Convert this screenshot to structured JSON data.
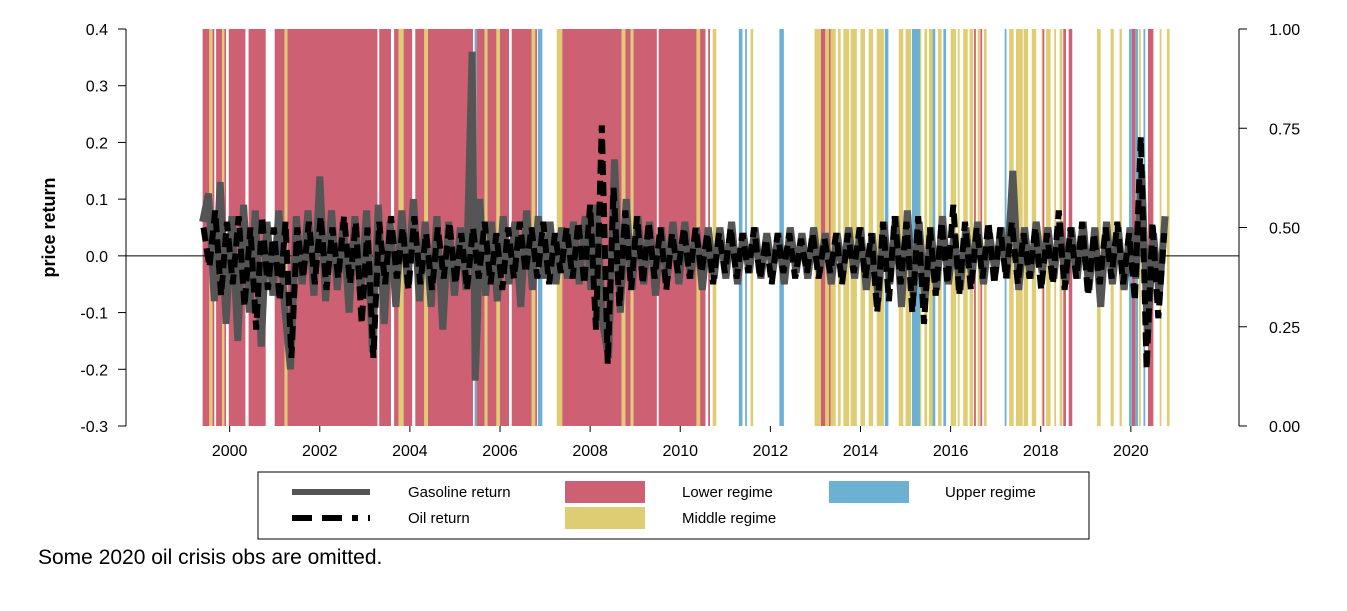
{
  "chart_data": {
    "type": "line",
    "title": "",
    "xlabel": "",
    "ylabel": "price return",
    "ylim": [
      -0.3,
      0.4
    ],
    "y2lim": [
      0.0,
      1.0
    ],
    "xlim": [
      1997.7,
      2022.4
    ],
    "x_ticks": [
      2000,
      2002,
      2004,
      2006,
      2008,
      2010,
      2012,
      2014,
      2016,
      2018,
      2020
    ],
    "y_ticks": [
      "0.4",
      "0.3",
      "0.2",
      "0.1",
      "0.0",
      "-0.1",
      "-0.2",
      "-0.3"
    ],
    "y2_ticks": [
      "1.00",
      "0.75",
      "0.50",
      "0.25",
      "0.00"
    ],
    "grid": false,
    "zero_line": 0.0,
    "legend_position": "bottom",
    "regimes": {
      "lower": [
        [
          1999.4,
          1999.55
        ],
        [
          1999.62,
          1999.66
        ],
        [
          1999.7,
          1999.83
        ],
        [
          1999.88,
          1999.92
        ],
        [
          1999.98,
          2000.35
        ],
        [
          2000.42,
          2000.8
        ],
        [
          2001.0,
          2001.22
        ],
        [
          2001.28,
          2003.28
        ],
        [
          2003.32,
          2003.58
        ],
        [
          2003.65,
          2003.75
        ],
        [
          2003.86,
          2004.05
        ],
        [
          2004.12,
          2004.32
        ],
        [
          2004.4,
          2005.4
        ],
        [
          2005.44,
          2005.45
        ],
        [
          2005.48,
          2005.66
        ],
        [
          2005.72,
          2005.92
        ],
        [
          2006.0,
          2006.2
        ],
        [
          2006.26,
          2006.7
        ],
        [
          2006.78,
          2006.82
        ],
        [
          2007.38,
          2008.7
        ],
        [
          2008.78,
          2008.9
        ],
        [
          2008.96,
          2009.48
        ],
        [
          2009.52,
          2010.36
        ],
        [
          2010.44,
          2010.56
        ],
        [
          2010.62,
          2010.66
        ],
        [
          2013.12,
          2013.22
        ],
        [
          2013.3,
          2013.34
        ],
        [
          2016.52,
          2016.56
        ],
        [
          2016.66,
          2016.7
        ],
        [
          2018.04,
          2018.08
        ],
        [
          2018.5,
          2018.56
        ],
        [
          2018.62,
          2018.7
        ],
        [
          2020.02,
          2020.1
        ],
        [
          2020.38,
          2020.5
        ]
      ],
      "middle": [
        [
          1999.55,
          1999.62
        ],
        [
          1999.83,
          1999.88
        ],
        [
          2001.22,
          2001.28
        ],
        [
          2003.75,
          2003.86
        ],
        [
          2004.32,
          2004.4
        ],
        [
          2005.66,
          2005.72
        ],
        [
          2005.92,
          2006.0
        ],
        [
          2006.7,
          2006.78
        ],
        [
          2007.26,
          2007.38
        ],
        [
          2008.7,
          2008.78
        ],
        [
          2008.9,
          2008.96
        ],
        [
          2010.36,
          2010.44
        ],
        [
          2010.72,
          2010.8
        ],
        [
          2011.56,
          2011.62
        ],
        [
          2012.98,
          2013.12
        ],
        [
          2013.22,
          2013.3
        ],
        [
          2013.34,
          2013.45
        ],
        [
          2013.5,
          2013.56
        ],
        [
          2013.62,
          2013.75
        ],
        [
          2013.78,
          2013.92
        ],
        [
          2014.0,
          2014.1
        ],
        [
          2014.18,
          2014.28
        ],
        [
          2014.36,
          2014.52
        ],
        [
          2014.85,
          2014.95
        ],
        [
          2015.0,
          2015.12
        ],
        [
          2015.25,
          2015.35
        ],
        [
          2015.42,
          2015.48
        ],
        [
          2015.52,
          2015.6
        ],
        [
          2015.72,
          2015.8
        ],
        [
          2016.0,
          2016.12
        ],
        [
          2016.16,
          2016.2
        ],
        [
          2016.28,
          2016.38
        ],
        [
          2016.42,
          2016.5
        ],
        [
          2016.6,
          2016.65
        ],
        [
          2016.74,
          2016.8
        ],
        [
          2017.3,
          2017.4
        ],
        [
          2017.45,
          2017.6
        ],
        [
          2017.62,
          2017.72
        ],
        [
          2017.8,
          2017.9
        ],
        [
          2018.02,
          2018.04
        ],
        [
          2018.12,
          2018.22
        ],
        [
          2018.3,
          2018.34
        ],
        [
          2018.42,
          2018.48
        ],
        [
          2019.25,
          2019.33
        ],
        [
          2019.55,
          2019.62
        ],
        [
          2019.75,
          2019.8
        ],
        [
          2020.18,
          2020.22
        ],
        [
          2020.64,
          2020.68
        ],
        [
          2020.8,
          2020.86
        ]
      ],
      "upper": [
        [
          2005.44,
          2005.48
        ],
        [
          2006.84,
          2006.94
        ],
        [
          2011.3,
          2011.38
        ],
        [
          2011.44,
          2011.48
        ],
        [
          2012.2,
          2012.3
        ],
        [
          2014.54,
          2014.62
        ],
        [
          2015.14,
          2015.32
        ],
        [
          2015.6,
          2015.66
        ],
        [
          2015.84,
          2015.9
        ],
        [
          2017.2,
          2017.24
        ],
        [
          2019.96,
          2020.02
        ],
        [
          2020.1,
          2020.16
        ],
        [
          2020.28,
          2020.32
        ]
      ]
    },
    "series": [
      {
        "name": "Gasoline return",
        "x": [
          1999.4,
          1999.53,
          1999.66,
          1999.79,
          1999.92,
          2000.05,
          2000.18,
          2000.31,
          2000.44,
          2000.57,
          2000.7,
          2000.83,
          2000.96,
          2001.09,
          2001.22,
          2001.35,
          2001.48,
          2001.61,
          2001.74,
          2001.87,
          2002.0,
          2002.13,
          2002.26,
          2002.39,
          2002.52,
          2002.65,
          2002.78,
          2002.91,
          2003.04,
          2003.17,
          2003.3,
          2003.43,
          2003.56,
          2003.69,
          2003.82,
          2003.95,
          2004.08,
          2004.21,
          2004.34,
          2004.47,
          2004.6,
          2004.73,
          2004.86,
          2004.99,
          2005.12,
          2005.25,
          2005.38,
          2005.45,
          2005.5,
          2005.55,
          2005.68,
          2005.81,
          2005.94,
          2006.07,
          2006.2,
          2006.33,
          2006.46,
          2006.59,
          2006.72,
          2006.85,
          2006.98,
          2007.11,
          2007.24,
          2007.37,
          2007.5,
          2007.63,
          2007.76,
          2007.89,
          2008.02,
          2008.15,
          2008.28,
          2008.41,
          2008.54,
          2008.67,
          2008.8,
          2008.93,
          2009.06,
          2009.19,
          2009.32,
          2009.45,
          2009.58,
          2009.71,
          2009.84,
          2009.97,
          2010.1,
          2010.23,
          2010.36,
          2010.49,
          2010.62,
          2010.75,
          2010.88,
          2011.01,
          2011.14,
          2011.27,
          2011.4,
          2011.53,
          2011.66,
          2011.79,
          2011.92,
          2012.05,
          2012.18,
          2012.31,
          2012.44,
          2012.57,
          2012.7,
          2012.83,
          2012.96,
          2013.09,
          2013.22,
          2013.35,
          2013.48,
          2013.61,
          2013.74,
          2013.87,
          2014.0,
          2014.13,
          2014.26,
          2014.39,
          2014.52,
          2014.65,
          2014.78,
          2014.91,
          2015.04,
          2015.17,
          2015.3,
          2015.43,
          2015.56,
          2015.69,
          2015.82,
          2015.95,
          2016.08,
          2016.21,
          2016.34,
          2016.47,
          2016.6,
          2016.73,
          2016.86,
          2016.99,
          2017.12,
          2017.25,
          2017.38,
          2017.51,
          2017.64,
          2017.77,
          2017.9,
          2018.03,
          2018.16,
          2018.29,
          2018.42,
          2018.55,
          2018.68,
          2018.81,
          2018.94,
          2019.07,
          2019.2,
          2019.33,
          2019.46,
          2019.59,
          2019.72,
          2019.85,
          2019.98,
          2020.11,
          2020.24,
          2020.37,
          2020.5,
          2020.63,
          2020.76
        ],
        "values": [
          0.06,
          0.11,
          -0.08,
          0.13,
          -0.12,
          0.07,
          -0.15,
          0.09,
          -0.1,
          0.08,
          -0.16,
          0.06,
          -0.07,
          0.08,
          -0.09,
          -0.2,
          0.07,
          -0.05,
          0.08,
          -0.07,
          0.14,
          -0.08,
          0.08,
          -0.06,
          0.06,
          -0.1,
          0.07,
          -0.07,
          0.08,
          -0.17,
          0.09,
          -0.12,
          0.06,
          -0.09,
          0.08,
          -0.05,
          0.1,
          -0.08,
          0.06,
          -0.09,
          0.07,
          -0.13,
          0.06,
          -0.07,
          0.05,
          -0.06,
          0.36,
          -0.22,
          -0.11,
          0.1,
          -0.07,
          0.06,
          -0.08,
          0.07,
          -0.05,
          0.06,
          -0.09,
          0.08,
          -0.06,
          0.07,
          -0.04,
          0.06,
          -0.05,
          0.05,
          -0.04,
          0.06,
          -0.05,
          0.07,
          -0.06,
          0.09,
          -0.12,
          -0.18,
          0.17,
          -0.1,
          0.1,
          -0.06,
          0.07,
          -0.05,
          0.06,
          -0.07,
          0.05,
          -0.04,
          0.06,
          -0.05,
          0.06,
          -0.04,
          0.05,
          -0.06,
          0.05,
          -0.04,
          0.05,
          -0.04,
          0.06,
          -0.05,
          0.04,
          -0.03,
          0.05,
          -0.04,
          0.04,
          -0.03,
          0.04,
          -0.05,
          0.05,
          -0.03,
          0.04,
          -0.04,
          0.05,
          -0.03,
          0.04,
          -0.05,
          0.04,
          -0.03,
          0.05,
          -0.04,
          0.05,
          -0.06,
          0.04,
          -0.08,
          0.06,
          -0.05,
          0.07,
          -0.09,
          0.08,
          -0.07,
          0.06,
          -0.08,
          0.05,
          -0.06,
          0.07,
          -0.05,
          0.04,
          -0.06,
          0.05,
          -0.04,
          0.06,
          -0.05,
          0.04,
          -0.03,
          0.05,
          -0.04,
          0.15,
          -0.06,
          0.05,
          -0.04,
          0.06,
          -0.03,
          0.05,
          -0.04,
          0.06,
          -0.05,
          0.05,
          -0.04,
          0.06,
          -0.06,
          0.05,
          -0.09,
          0.06,
          -0.05,
          0.05,
          -0.06,
          0.05,
          -0.04,
          0.15,
          -0.14,
          0.04,
          -0.07,
          0.07
        ]
      },
      {
        "name": "Oil return",
        "x": [
          1999.42,
          1999.55,
          1999.68,
          1999.81,
          1999.94,
          2000.07,
          2000.2,
          2000.33,
          2000.46,
          2000.59,
          2000.72,
          2000.85,
          2000.98,
          2001.11,
          2001.24,
          2001.37,
          2001.5,
          2001.63,
          2001.76,
          2001.89,
          2002.02,
          2002.15,
          2002.28,
          2002.41,
          2002.54,
          2002.67,
          2002.8,
          2002.93,
          2003.06,
          2003.19,
          2003.32,
          2003.45,
          2003.58,
          2003.71,
          2003.84,
          2003.97,
          2004.1,
          2004.23,
          2004.36,
          2004.49,
          2004.62,
          2004.75,
          2004.88,
          2005.01,
          2005.14,
          2005.27,
          2005.4,
          2005.53,
          2005.66,
          2005.79,
          2005.92,
          2006.05,
          2006.18,
          2006.31,
          2006.44,
          2006.57,
          2006.7,
          2006.83,
          2006.96,
          2007.09,
          2007.22,
          2007.35,
          2007.48,
          2007.61,
          2007.74,
          2007.87,
          2008.0,
          2008.13,
          2008.26,
          2008.39,
          2008.52,
          2008.65,
          2008.78,
          2008.91,
          2009.04,
          2009.17,
          2009.3,
          2009.43,
          2009.56,
          2009.69,
          2009.82,
          2009.95,
          2010.08,
          2010.21,
          2010.34,
          2010.47,
          2010.6,
          2010.73,
          2010.86,
          2010.99,
          2011.12,
          2011.25,
          2011.38,
          2011.51,
          2011.64,
          2011.77,
          2011.9,
          2012.03,
          2012.16,
          2012.29,
          2012.42,
          2012.55,
          2012.68,
          2012.81,
          2012.94,
          2013.07,
          2013.2,
          2013.33,
          2013.46,
          2013.59,
          2013.72,
          2013.85,
          2013.98,
          2014.11,
          2014.24,
          2014.37,
          2014.5,
          2014.63,
          2014.76,
          2014.89,
          2015.02,
          2015.15,
          2015.28,
          2015.41,
          2015.54,
          2015.67,
          2015.8,
          2015.93,
          2016.06,
          2016.19,
          2016.32,
          2016.45,
          2016.58,
          2016.71,
          2016.84,
          2016.97,
          2017.1,
          2017.23,
          2017.36,
          2017.49,
          2017.62,
          2017.75,
          2017.88,
          2018.01,
          2018.14,
          2018.27,
          2018.4,
          2018.53,
          2018.66,
          2018.79,
          2018.92,
          2019.05,
          2019.18,
          2019.31,
          2019.44,
          2019.57,
          2019.7,
          2019.83,
          2019.96,
          2020.09,
          2020.22,
          2020.35,
          2020.48,
          2020.61,
          2020.74
        ],
        "values": [
          0.05,
          -0.02,
          0.08,
          -0.07,
          0.06,
          -0.05,
          0.07,
          -0.09,
          0.05,
          -0.13,
          0.07,
          -0.06,
          0.05,
          -0.08,
          0.06,
          -0.18,
          0.05,
          -0.04,
          0.06,
          -0.05,
          0.07,
          -0.06,
          0.05,
          -0.04,
          0.07,
          -0.05,
          0.06,
          -0.12,
          0.05,
          -0.18,
          0.06,
          -0.05,
          0.07,
          -0.04,
          0.05,
          -0.06,
          0.07,
          -0.05,
          0.04,
          -0.06,
          0.05,
          -0.04,
          0.06,
          -0.05,
          0.04,
          -0.06,
          0.05,
          -0.04,
          0.06,
          -0.05,
          0.04,
          -0.06,
          0.05,
          -0.04,
          0.06,
          -0.03,
          0.05,
          -0.04,
          0.06,
          -0.05,
          0.04,
          -0.03,
          0.05,
          -0.04,
          0.06,
          -0.05,
          0.09,
          -0.13,
          0.23,
          -0.19,
          0.12,
          -0.09,
          0.08,
          -0.06,
          0.07,
          -0.05,
          0.06,
          -0.04,
          0.05,
          -0.06,
          0.04,
          -0.03,
          0.05,
          -0.04,
          0.05,
          -0.03,
          0.04,
          -0.05,
          0.04,
          -0.03,
          0.05,
          -0.04,
          0.04,
          -0.03,
          0.05,
          -0.04,
          0.03,
          -0.05,
          0.04,
          -0.03,
          0.04,
          -0.04,
          0.03,
          -0.03,
          0.04,
          -0.04,
          0.03,
          -0.03,
          0.04,
          -0.05,
          0.04,
          -0.03,
          0.05,
          -0.04,
          0.04,
          -0.1,
          0.06,
          -0.08,
          0.07,
          -0.05,
          0.06,
          -0.1,
          0.07,
          -0.12,
          0.05,
          -0.07,
          0.06,
          -0.05,
          0.09,
          -0.07,
          0.06,
          -0.06,
          0.05,
          -0.04,
          0.06,
          -0.05,
          0.05,
          -0.04,
          0.06,
          -0.05,
          0.04,
          -0.04,
          0.05,
          -0.06,
          0.04,
          -0.05,
          0.08,
          -0.06,
          0.05,
          -0.04,
          0.06,
          -0.07,
          0.04,
          -0.05,
          0.05,
          -0.04,
          0.06,
          -0.05,
          0.04,
          -0.08,
          0.21,
          -0.2,
          0.06,
          -0.11,
          0.04
        ]
      }
    ],
    "legend": [
      {
        "label": "Gasoline return",
        "kind": "line-solid",
        "color": "#555555"
      },
      {
        "label": "Oil return",
        "kind": "line-dashed",
        "color": "#000000"
      },
      {
        "label": "Lower regime",
        "kind": "patch",
        "color": "#cd6072"
      },
      {
        "label": "Middle regime",
        "kind": "patch",
        "color": "#dfcd74"
      },
      {
        "label": "Upper regime",
        "kind": "patch",
        "color": "#6db1d2"
      }
    ]
  },
  "colors": {
    "gasoline": "#555555",
    "oil": "#000000",
    "lower_regime": "#cd6072",
    "middle_regime": "#dfcd74",
    "upper_regime": "#6db1d2"
  },
  "footnote": "Some 2020 oil crisis obs are omitted."
}
